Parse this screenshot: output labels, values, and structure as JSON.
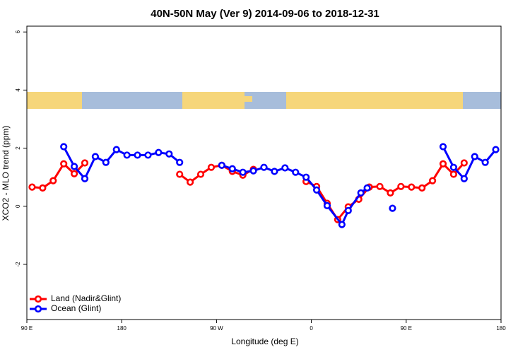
{
  "chart_data": {
    "type": "line",
    "title": "40N-50N May (Ver 9)   2014-09-06 to 2018-12-31",
    "xlabel": "Longitude (deg E)",
    "ylabel": "XCO2 - MLO trend (ppm)",
    "xlim": [
      90,
      540
    ],
    "ylim": [
      -3.9,
      6.2
    ],
    "xticks": [
      {
        "value": 90,
        "label": "90 E"
      },
      {
        "value": 180,
        "label": "180"
      },
      {
        "value": 270,
        "label": "90 W"
      },
      {
        "value": 360,
        "label": "0"
      },
      {
        "value": 450,
        "label": "90 E"
      },
      {
        "value": 540,
        "label": "180"
      }
    ],
    "yticks": [
      -2,
      0,
      2,
      4,
      6
    ],
    "legend": "bottom-left",
    "series": [
      {
        "name": "Land (Nadir&Glint)",
        "color": "#ff0000",
        "x": [
          95,
          105,
          115,
          125,
          135,
          145,
          null,
          235,
          245,
          255,
          265,
          275,
          285,
          295,
          305,
          null,
          355,
          365,
          375,
          385,
          395,
          405,
          415,
          425,
          435,
          445,
          455,
          465,
          475,
          485,
          495,
          505
        ],
        "values": [
          0.66,
          0.63,
          0.88,
          1.46,
          1.12,
          1.49,
          null,
          1.1,
          0.83,
          1.1,
          1.34,
          1.41,
          1.2,
          1.07,
          1.27,
          null,
          0.85,
          0.68,
          0.1,
          -0.46,
          -0.02,
          0.24,
          0.66,
          0.68,
          0.46,
          0.68,
          0.66,
          0.63,
          0.88,
          1.46,
          1.1,
          1.49
        ]
      },
      {
        "name": "Ocean (Glint)",
        "color": "#0000ff",
        "x": [
          125,
          135,
          145,
          155,
          165,
          175,
          185,
          195,
          205,
          215,
          225,
          235,
          null,
          275,
          285,
          295,
          305,
          315,
          325,
          335,
          345,
          355,
          365,
          375,
          389,
          395,
          407,
          413,
          null,
          437,
          null,
          485,
          495,
          505,
          515,
          525,
          535
        ],
        "values": [
          2.05,
          1.37,
          0.95,
          1.71,
          1.51,
          1.95,
          1.76,
          1.76,
          1.76,
          1.85,
          1.8,
          1.51,
          null,
          1.41,
          1.29,
          1.17,
          1.22,
          1.34,
          1.2,
          1.32,
          1.17,
          1.0,
          0.56,
          0.02,
          -0.63,
          -0.15,
          0.46,
          0.63,
          null,
          -0.07,
          null,
          2.05,
          1.34,
          0.95,
          1.71,
          1.51,
          1.95
        ]
      }
    ]
  }
}
